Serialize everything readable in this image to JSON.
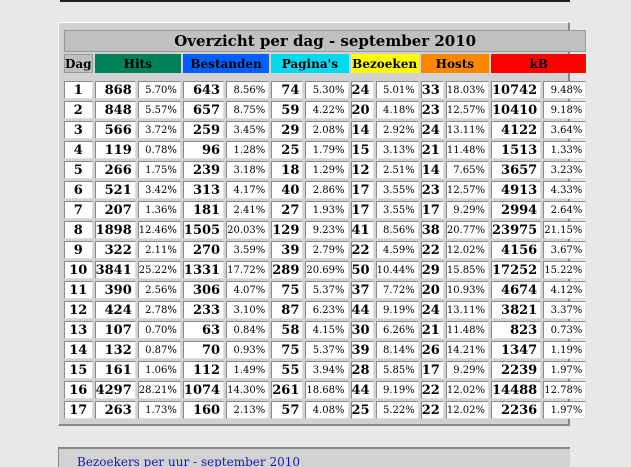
{
  "title": "Overzicht per dag - september 2010",
  "headers": {
    "dag": "Dag",
    "hits": "Hits",
    "files": "Bestanden",
    "pages": "Pagina's",
    "visits": "Bezoeken",
    "hosts": "Hosts",
    "kb": "kB"
  },
  "colors": {
    "hits": "#00805a",
    "files": "#0060ff",
    "pages": "#00d8f0",
    "visits": "#ffff00",
    "hosts": "#ff8800",
    "kb": "#ff0000"
  },
  "rows": [
    {
      "day": "1",
      "hits": "868",
      "hits_pct": "5.70%",
      "files": "643",
      "files_pct": "8.56%",
      "pages": "74",
      "pages_pct": "5.30%",
      "visits": "24",
      "visits_pct": "5.01%",
      "hosts": "33",
      "hosts_pct": "18.03%",
      "kb": "10742",
      "kb_pct": "9.48%"
    },
    {
      "day": "2",
      "hits": "848",
      "hits_pct": "5.57%",
      "files": "657",
      "files_pct": "8.75%",
      "pages": "59",
      "pages_pct": "4.22%",
      "visits": "20",
      "visits_pct": "4.18%",
      "hosts": "23",
      "hosts_pct": "12.57%",
      "kb": "10410",
      "kb_pct": "9.18%"
    },
    {
      "day": "3",
      "hits": "566",
      "hits_pct": "3.72%",
      "files": "259",
      "files_pct": "3.45%",
      "pages": "29",
      "pages_pct": "2.08%",
      "visits": "14",
      "visits_pct": "2.92%",
      "hosts": "24",
      "hosts_pct": "13.11%",
      "kb": "4122",
      "kb_pct": "3.64%"
    },
    {
      "day": "4",
      "hits": "119",
      "hits_pct": "0.78%",
      "files": "96",
      "files_pct": "1.28%",
      "pages": "25",
      "pages_pct": "1.79%",
      "visits": "15",
      "visits_pct": "3.13%",
      "hosts": "21",
      "hosts_pct": "11.48%",
      "kb": "1513",
      "kb_pct": "1.33%"
    },
    {
      "day": "5",
      "hits": "266",
      "hits_pct": "1.75%",
      "files": "239",
      "files_pct": "3.18%",
      "pages": "18",
      "pages_pct": "1.29%",
      "visits": "12",
      "visits_pct": "2.51%",
      "hosts": "14",
      "hosts_pct": "7.65%",
      "kb": "3657",
      "kb_pct": "3.23%"
    },
    {
      "day": "6",
      "hits": "521",
      "hits_pct": "3.42%",
      "files": "313",
      "files_pct": "4.17%",
      "pages": "40",
      "pages_pct": "2.86%",
      "visits": "17",
      "visits_pct": "3.55%",
      "hosts": "23",
      "hosts_pct": "12.57%",
      "kb": "4913",
      "kb_pct": "4.33%"
    },
    {
      "day": "7",
      "hits": "207",
      "hits_pct": "1.36%",
      "files": "181",
      "files_pct": "2.41%",
      "pages": "27",
      "pages_pct": "1.93%",
      "visits": "17",
      "visits_pct": "3.55%",
      "hosts": "17",
      "hosts_pct": "9.29%",
      "kb": "2994",
      "kb_pct": "2.64%"
    },
    {
      "day": "8",
      "hits": "1898",
      "hits_pct": "12.46%",
      "files": "1505",
      "files_pct": "20.03%",
      "pages": "129",
      "pages_pct": "9.23%",
      "visits": "41",
      "visits_pct": "8.56%",
      "hosts": "38",
      "hosts_pct": "20.77%",
      "kb": "23975",
      "kb_pct": "21.15%"
    },
    {
      "day": "9",
      "hits": "322",
      "hits_pct": "2.11%",
      "files": "270",
      "files_pct": "3.59%",
      "pages": "39",
      "pages_pct": "2.79%",
      "visits": "22",
      "visits_pct": "4.59%",
      "hosts": "22",
      "hosts_pct": "12.02%",
      "kb": "4156",
      "kb_pct": "3.67%"
    },
    {
      "day": "10",
      "hits": "3841",
      "hits_pct": "25.22%",
      "files": "1331",
      "files_pct": "17.72%",
      "pages": "289",
      "pages_pct": "20.69%",
      "visits": "50",
      "visits_pct": "10.44%",
      "hosts": "29",
      "hosts_pct": "15.85%",
      "kb": "17252",
      "kb_pct": "15.22%"
    },
    {
      "day": "11",
      "hits": "390",
      "hits_pct": "2.56%",
      "files": "306",
      "files_pct": "4.07%",
      "pages": "75",
      "pages_pct": "5.37%",
      "visits": "37",
      "visits_pct": "7.72%",
      "hosts": "20",
      "hosts_pct": "10.93%",
      "kb": "4674",
      "kb_pct": "4.12%"
    },
    {
      "day": "12",
      "hits": "424",
      "hits_pct": "2.78%",
      "files": "233",
      "files_pct": "3.10%",
      "pages": "87",
      "pages_pct": "6.23%",
      "visits": "44",
      "visits_pct": "9.19%",
      "hosts": "24",
      "hosts_pct": "13.11%",
      "kb": "3821",
      "kb_pct": "3.37%"
    },
    {
      "day": "13",
      "hits": "107",
      "hits_pct": "0.70%",
      "files": "63",
      "files_pct": "0.84%",
      "pages": "58",
      "pages_pct": "4.15%",
      "visits": "30",
      "visits_pct": "6.26%",
      "hosts": "21",
      "hosts_pct": "11.48%",
      "kb": "823",
      "kb_pct": "0.73%"
    },
    {
      "day": "14",
      "hits": "132",
      "hits_pct": "0.87%",
      "files": "70",
      "files_pct": "0.93%",
      "pages": "75",
      "pages_pct": "5.37%",
      "visits": "39",
      "visits_pct": "8.14%",
      "hosts": "26",
      "hosts_pct": "14.21%",
      "kb": "1347",
      "kb_pct": "1.19%"
    },
    {
      "day": "15",
      "hits": "161",
      "hits_pct": "1.06%",
      "files": "112",
      "files_pct": "1.49%",
      "pages": "55",
      "pages_pct": "3.94%",
      "visits": "28",
      "visits_pct": "5.85%",
      "hosts": "17",
      "hosts_pct": "9.29%",
      "kb": "2239",
      "kb_pct": "1.97%"
    },
    {
      "day": "16",
      "hits": "4297",
      "hits_pct": "28.21%",
      "files": "1074",
      "files_pct": "14.30%",
      "pages": "261",
      "pages_pct": "18.68%",
      "visits": "44",
      "visits_pct": "9.19%",
      "hosts": "22",
      "hosts_pct": "12.02%",
      "kb": "14488",
      "kb_pct": "12.78%"
    },
    {
      "day": "17",
      "hits": "263",
      "hits_pct": "1.73%",
      "files": "160",
      "files_pct": "2.13%",
      "pages": "57",
      "pages_pct": "4.08%",
      "visits": "25",
      "visits_pct": "5.22%",
      "hosts": "22",
      "hosts_pct": "12.02%",
      "kb": "2236",
      "kb_pct": "1.97%"
    }
  ],
  "footer_link": "Bezoekers per uur - september 2010"
}
